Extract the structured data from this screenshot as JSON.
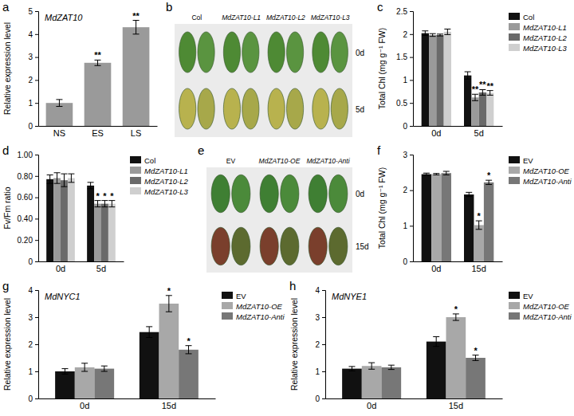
{
  "chart_data": [
    {
      "type": "bar",
      "panel": "a",
      "title": "MdZAT10",
      "y_label": "Relative expression level",
      "categories": [
        "NS",
        "ES",
        "LS"
      ],
      "values": [
        1.0,
        2.75,
        4.3
      ],
      "errors": [
        0.15,
        0.12,
        0.3
      ],
      "significance": [
        null,
        "**",
        "**"
      ],
      "color": "#9a9a9a",
      "ylim": [
        0,
        5
      ],
      "yticks": [
        0,
        1,
        2,
        3,
        4,
        5
      ]
    },
    {
      "type": "photo",
      "panel": "b",
      "categories": [
        "Col",
        "MdZAT10-L1",
        "MdZAT10-L2",
        "MdZAT10-L3"
      ],
      "rows": [
        "0d",
        "5d"
      ]
    },
    {
      "type": "bar",
      "panel": "c",
      "y_label": "Total Chl (mg g⁻¹ FW)",
      "categories": [
        "0d",
        "5d"
      ],
      "series": [
        {
          "name": "Col",
          "color": "#111111",
          "values": [
            2.02,
            1.1
          ],
          "errors": [
            0.05,
            0.08
          ],
          "significance": [
            null,
            null
          ]
        },
        {
          "name": "MdZAT10-L1",
          "color": "#9a9a9a",
          "values": [
            1.98,
            0.62
          ],
          "errors": [
            0.03,
            0.07
          ],
          "significance": [
            null,
            "**"
          ]
        },
        {
          "name": "MdZAT10-L2",
          "color": "#6a6a6a",
          "values": [
            1.98,
            0.73
          ],
          "errors": [
            0.02,
            0.06
          ],
          "significance": [
            null,
            "**"
          ]
        },
        {
          "name": "MdZAT10-L3",
          "color": "#cfcfcf",
          "values": [
            2.05,
            0.72
          ],
          "errors": [
            0.06,
            0.05
          ],
          "significance": [
            null,
            "**"
          ]
        }
      ],
      "ylim": [
        0,
        2.5
      ],
      "yticks": [
        0,
        0.5,
        1,
        1.5,
        2,
        2.5
      ]
    },
    {
      "type": "bar",
      "panel": "d",
      "y_label": "Fv/Fm ratio",
      "categories": [
        "0d",
        "5d"
      ],
      "series": [
        {
          "name": "Col",
          "color": "#111111",
          "values": [
            0.77,
            0.71
          ],
          "errors": [
            0.04,
            0.03
          ],
          "significance": [
            null,
            null
          ]
        },
        {
          "name": "MdZAT10-L1",
          "color": "#9a9a9a",
          "values": [
            0.78,
            0.54
          ],
          "errors": [
            0.05,
            0.03
          ],
          "significance": [
            null,
            "*"
          ]
        },
        {
          "name": "MdZAT10-L2",
          "color": "#6a6a6a",
          "values": [
            0.76,
            0.54
          ],
          "errors": [
            0.06,
            0.03
          ],
          "significance": [
            null,
            "*"
          ]
        },
        {
          "name": "MdZAT10-L3",
          "color": "#cfcfcf",
          "values": [
            0.78,
            0.54
          ],
          "errors": [
            0.04,
            0.03
          ],
          "significance": [
            null,
            "*"
          ]
        }
      ],
      "ylim": [
        0,
        1.0
      ],
      "yticks": [
        0,
        {
          "value": 0.2,
          "label": "0.20"
        },
        {
          "value": 0.4,
          "label": "0.40"
        },
        {
          "value": 0.6,
          "label": "0.60"
        },
        {
          "value": 0.8,
          "label": "0.80"
        },
        {
          "value": 1.0,
          "label": "1.00"
        }
      ]
    },
    {
      "type": "photo",
      "panel": "e",
      "categories": [
        "EV",
        "MdZAT10-OE",
        "MdZAT10-Anti"
      ],
      "rows": [
        "0d",
        "15d"
      ]
    },
    {
      "type": "bar",
      "panel": "f",
      "y_label": "Total Chl (mg g⁻¹ FW)",
      "categories": [
        "0d",
        "15d"
      ],
      "series": [
        {
          "name": "EV",
          "color": "#111111",
          "values": [
            2.45,
            1.88
          ],
          "errors": [
            0.03,
            0.06
          ],
          "significance": [
            null,
            null
          ]
        },
        {
          "name": "MdZAT10-OE",
          "color": "#a8a8a8",
          "values": [
            2.45,
            1.02
          ],
          "errors": [
            0.02,
            0.12
          ],
          "significance": [
            null,
            "*"
          ]
        },
        {
          "name": "MdZAT10-Anti",
          "color": "#777777",
          "values": [
            2.48,
            2.22
          ],
          "errors": [
            0.05,
            0.06
          ],
          "significance": [
            null,
            "*"
          ]
        }
      ],
      "ylim": [
        0,
        3
      ],
      "yticks": [
        0,
        1,
        2,
        3
      ]
    },
    {
      "type": "bar",
      "panel": "g",
      "title": "MdNYC1",
      "y_label": "Relative expression level",
      "categories": [
        "0d",
        "15d"
      ],
      "series": [
        {
          "name": "EV",
          "color": "#111111",
          "values": [
            1.0,
            2.45
          ],
          "errors": [
            0.1,
            0.2
          ],
          "significance": [
            null,
            null
          ]
        },
        {
          "name": "MdZAT10-OE",
          "color": "#a8a8a8",
          "values": [
            1.15,
            3.5
          ],
          "errors": [
            0.15,
            0.3
          ],
          "significance": [
            null,
            "*"
          ]
        },
        {
          "name": "MdZAT10-Anti",
          "color": "#777777",
          "values": [
            1.1,
            1.8
          ],
          "errors": [
            0.1,
            0.15
          ],
          "significance": [
            null,
            "*"
          ]
        }
      ],
      "ylim": [
        0,
        4
      ],
      "yticks": [
        0,
        1,
        2,
        3,
        4
      ]
    },
    {
      "type": "bar",
      "panel": "h",
      "title": "MdNYE1",
      "y_label": "Relative expression level",
      "categories": [
        "0d",
        "15d"
      ],
      "series": [
        {
          "name": "EV",
          "color": "#111111",
          "values": [
            1.1,
            2.1
          ],
          "errors": [
            0.08,
            0.18
          ],
          "significance": [
            null,
            null
          ]
        },
        {
          "name": "MdZAT10-OE",
          "color": "#a8a8a8",
          "values": [
            1.2,
            3.0
          ],
          "errors": [
            0.12,
            0.12
          ],
          "significance": [
            null,
            "*"
          ]
        },
        {
          "name": "MdZAT10-Anti",
          "color": "#777777",
          "values": [
            1.15,
            1.5
          ],
          "errors": [
            0.08,
            0.1
          ],
          "significance": [
            null,
            "*"
          ]
        }
      ],
      "ylim": [
        0,
        4
      ],
      "yticks": [
        0,
        1,
        2,
        3,
        4
      ]
    }
  ]
}
